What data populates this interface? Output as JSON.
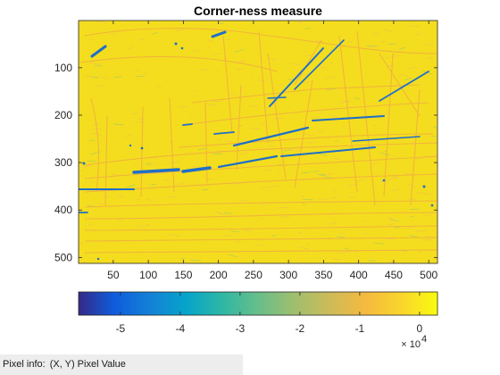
{
  "window": {
    "figure_title": "Corner-ness measure"
  },
  "status_bar": {
    "pixel_info_label": "Pixel info:",
    "pixel_info_value": "(X, Y)  Pixel Value"
  },
  "chart_data": {
    "type": "heatmap",
    "title": "Corner-ness measure",
    "xlabel": "",
    "ylabel": "",
    "xlim": [
      0.5,
      512.5
    ],
    "ylim": [
      0.5,
      512.5
    ],
    "y_reversed": true,
    "xticks": [
      50,
      100,
      150,
      200,
      250,
      300,
      350,
      400,
      450,
      500
    ],
    "yticks": [
      100,
      200,
      300,
      400,
      500
    ],
    "colorbar": {
      "orientation": "horizontal",
      "limits": [
        -5.7,
        0.3
      ],
      "ticks": [
        -5,
        -4,
        -3,
        -2,
        -1,
        0
      ],
      "exponent_label_base": "× 10",
      "exponent_label_power": "4",
      "colormap": "parula"
    },
    "colors": {
      "background_yellow": "#f4dd1e",
      "strong_blue": "#1f6fc8",
      "orange_edge": "#f0a848",
      "axis": "#262626"
    }
  }
}
